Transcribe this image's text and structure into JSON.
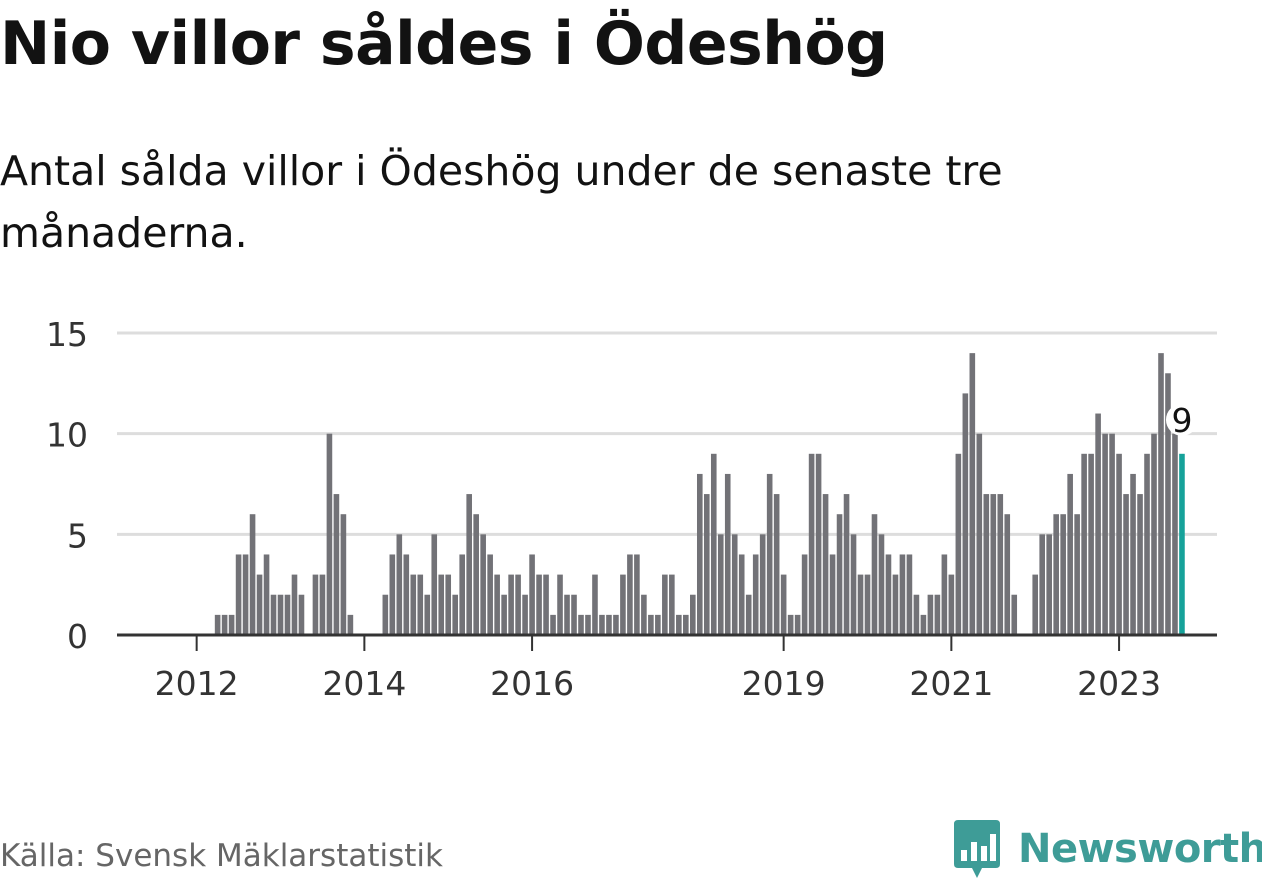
{
  "title": "Nio villor såldes i Ödeshög",
  "subtitle": "Antal sålda villor i Ödeshög under de senaste tre månaderna.",
  "source": "Källa: Svensk Mäklarstatistik",
  "brand": {
    "name": "Newsworthy",
    "icon": "newsworthy-logo-icon",
    "color": "#3e9c97"
  },
  "colors": {
    "bar": "#727277",
    "highlight": "#16a29a",
    "grid": "#dddddd",
    "axis": "#333333",
    "tick_text": "#333333"
  },
  "chart_data": {
    "type": "bar",
    "start_month": "2011-01",
    "x_tick_labels": [
      "2012",
      "2014",
      "2016",
      "2019",
      "2021",
      "2023"
    ],
    "y_ticks": [
      0,
      5,
      10,
      15
    ],
    "ylim": [
      0,
      15
    ],
    "grid": true,
    "highlight_last": true,
    "last_value_label": "9",
    "values": [
      0,
      0,
      0,
      0,
      0,
      0,
      0,
      0,
      0,
      0,
      0,
      0,
      0,
      0,
      0,
      1,
      1,
      1,
      4,
      4,
      6,
      3,
      4,
      2,
      2,
      2,
      3,
      2,
      0,
      3,
      3,
      10,
      7,
      6,
      1,
      0,
      0,
      0,
      0,
      2,
      4,
      5,
      4,
      3,
      3,
      2,
      5,
      3,
      3,
      2,
      4,
      7,
      6,
      5,
      4,
      3,
      2,
      3,
      3,
      2,
      4,
      3,
      3,
      1,
      3,
      2,
      2,
      1,
      1,
      3,
      1,
      1,
      1,
      3,
      4,
      4,
      2,
      1,
      1,
      3,
      3,
      1,
      1,
      2,
      8,
      7,
      9,
      5,
      8,
      5,
      4,
      2,
      4,
      5,
      8,
      7,
      3,
      1,
      1,
      4,
      9,
      9,
      7,
      4,
      6,
      7,
      5,
      3,
      3,
      6,
      5,
      4,
      3,
      4,
      4,
      2,
      1,
      2,
      2,
      4,
      3,
      9,
      12,
      14,
      10,
      7,
      7,
      7,
      6,
      2,
      0,
      0,
      3,
      5,
      5,
      6,
      6,
      8,
      6,
      9,
      9,
      11,
      10,
      10,
      9,
      7,
      8,
      7,
      9,
      10,
      14,
      13,
      10,
      9
    ]
  }
}
